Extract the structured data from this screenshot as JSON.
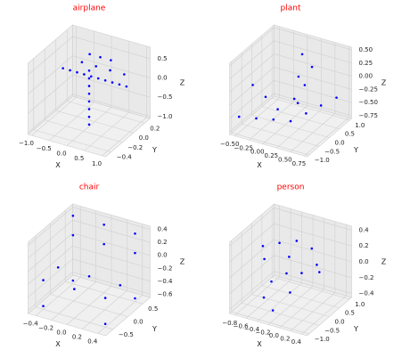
{
  "chart_data": [
    {
      "type": "scatter3d",
      "title": "airplane",
      "title_color": "#ff0000",
      "xlabel": "X",
      "ylabel": "Y",
      "zlabel": "Z",
      "color": "#0000ff",
      "xlim": [
        -1.1,
        1.1
      ],
      "ylim": [
        -0.5,
        0.3
      ],
      "zlim": [
        -1.05,
        0.8
      ],
      "xticks": [
        {
          "value": -1.0,
          "label": "−1.0"
        },
        {
          "value": -0.5,
          "label": "−0.5"
        },
        {
          "value": 0.0,
          "label": "0.0"
        },
        0.5,
        {
          "value": 1.0,
          "label": "1.0"
        }
      ],
      "yticks": [
        {
          "value": -0.4,
          "label": "−0.4"
        },
        {
          "value": -0.2,
          "label": "−0.2"
        },
        {
          "value": 0.0,
          "label": "0.0"
        },
        0.2
      ],
      "zticks": [
        {
          "value": -1.0,
          "label": "−1.0"
        },
        {
          "value": -0.5,
          "label": "−0.5"
        },
        {
          "value": 0.0,
          "label": "0.0"
        },
        0.5
      ],
      "x": [
        -0.9,
        -0.7,
        -0.5,
        -0.3,
        -0.1,
        0.1,
        0.3,
        0.5,
        0.7,
        0.9,
        -0.6,
        -0.2,
        0.2,
        0.6,
        0,
        0,
        0,
        0,
        0,
        0,
        0,
        0,
        -0.3,
        0,
        0.3
      ],
      "y": [
        0,
        0,
        0,
        0,
        0,
        0,
        0,
        0,
        0,
        0,
        0.15,
        0.15,
        0.15,
        0.15,
        -0.1,
        -0.1,
        -0.1,
        -0.1,
        -0.1,
        -0.1,
        -0.1,
        -0.1,
        0.1,
        0.1,
        0.1
      ],
      "z": [
        0.1,
        0.1,
        0.1,
        0.1,
        0.1,
        0.1,
        0.1,
        0.1,
        0.1,
        0.1,
        0.15,
        0.15,
        0.15,
        0.15,
        -1.0,
        -0.8,
        -0.6,
        -0.4,
        -0.2,
        0,
        0.2,
        0.4,
        0.5,
        0.5,
        0.5
      ]
    },
    {
      "type": "scatter3d",
      "title": "plant",
      "title_color": "#ff0000",
      "xlabel": "X",
      "ylabel": "Y",
      "zlabel": "Z",
      "color": "#0000ff",
      "xlim": [
        -0.6,
        0.8
      ],
      "ylim": [
        -1.1,
        1.1
      ],
      "zlim": [
        -0.8,
        0.55
      ],
      "xticks": [
        {
          "value": -0.5,
          "label": "−0.50"
        },
        {
          "value": -0.25,
          "label": "−0.25"
        },
        {
          "value": 0.0,
          "label": "0.00"
        },
        0.25,
        {
          "value": 0.5,
          "label": "0.50"
        },
        0.75
      ],
      "yticks": [
        {
          "value": -1.0,
          "label": "−1.0"
        },
        {
          "value": -0.5,
          "label": "−0.5"
        },
        {
          "value": 0.0,
          "label": "0.0"
        },
        0.5,
        {
          "value": 1.0,
          "label": "1.0"
        }
      ],
      "zticks": [
        {
          "value": -0.75,
          "label": "−0.75"
        },
        {
          "value": -0.5,
          "label": "−0.50"
        },
        {
          "value": -0.25,
          "label": "−0.25"
        },
        {
          "value": 0.0,
          "label": "0.00"
        },
        0.25,
        {
          "value": 0.5,
          "label": "0.50"
        }
      ],
      "x": [
        0.1,
        -0.07,
        -0.23,
        -0.4,
        0.13,
        0.17,
        0.2,
        0.22,
        0.33,
        0.45,
        0.27,
        0.43,
        0.6,
        -0.1,
        -0.3,
        -0.5
      ],
      "y": [
        0,
        -0.17,
        -0.33,
        -0.5,
        0.1,
        0.2,
        0.3,
        0.03,
        0.07,
        0.1,
        0.3,
        0.6,
        0.9,
        -0.3,
        -0.6,
        -0.9
      ],
      "z": [
        -0.7,
        -0.47,
        -0.23,
        0,
        -0.3,
        0.1,
        0.5,
        -0.33,
        0.03,
        0.4,
        -0.6,
        -0.5,
        -0.4,
        -0.63,
        -0.57,
        -0.5
      ]
    },
    {
      "type": "scatter3d",
      "title": "chair",
      "title_color": "#ff0000",
      "xlabel": "X",
      "ylabel": "Y",
      "zlabel": "Z",
      "color": "#0000ff",
      "xlim": [
        -0.5,
        0.5
      ],
      "ylim": [
        -0.75,
        0.75
      ],
      "zlim": [
        -0.65,
        0.45
      ],
      "xticks": [
        {
          "value": -0.4,
          "label": "−0.4"
        },
        {
          "value": -0.2,
          "label": "−0.2"
        },
        {
          "value": 0.0,
          "label": "0.0"
        },
        0.2,
        0.4
      ],
      "yticks": [
        {
          "value": -0.5,
          "label": "−0.5"
        },
        {
          "value": 0.0,
          "label": "0.0"
        },
        0.5
      ],
      "zticks": [
        {
          "value": -0.6,
          "label": "−0.6"
        },
        {
          "value": -0.4,
          "label": "−0.4"
        },
        {
          "value": -0.2,
          "label": "−0.2"
        },
        {
          "value": 0.0,
          "label": "0.0"
        },
        0.2,
        0.4
      ],
      "x": [
        -0.4,
        0,
        0.4,
        -0.4,
        0,
        0.4,
        -0.4,
        0,
        0.4,
        -0.4,
        0,
        0.4,
        -0.4,
        0.4,
        -0.4,
        0.4
      ],
      "y": [
        0.5,
        0.5,
        0.5,
        0.5,
        0.5,
        0.5,
        -0.5,
        -0.5,
        -0.5,
        0,
        0,
        0,
        -0.5,
        -0.5,
        0.5,
        0.5
      ],
      "z": [
        0.4,
        0.4,
        0.4,
        0.1,
        0.1,
        0.1,
        -0.2,
        -0.2,
        -0.2,
        -0.2,
        -0.2,
        -0.2,
        -0.6,
        -0.6,
        -0.6,
        -0.6
      ]
    },
    {
      "type": "scatter3d",
      "title": "person",
      "title_color": "#ff0000",
      "xlabel": "X",
      "ylabel": "Y",
      "zlabel": "Z",
      "color": "#0000ff",
      "xlim": [
        -0.9,
        0.5
      ],
      "ylim": [
        -1.1,
        1.1
      ],
      "zlim": [
        -0.45,
        0.45
      ],
      "xticks": [
        {
          "value": -0.8,
          "label": "−0.8"
        },
        {
          "value": -0.6,
          "label": "−0.6"
        },
        {
          "value": -0.4,
          "label": "−0.4"
        },
        {
          "value": -0.2,
          "label": "−0.2"
        },
        {
          "value": 0.0,
          "label": "0.0"
        },
        0.2,
        0.4
      ],
      "yticks": [
        {
          "value": -1.0,
          "label": "−1.0"
        },
        {
          "value": -0.5,
          "label": "−0.5"
        },
        {
          "value": 0.0,
          "label": "0.0"
        },
        0.5,
        {
          "value": 1.0,
          "label": "1.0"
        }
      ],
      "zticks": [
        {
          "value": -0.4,
          "label": "−0.4"
        },
        {
          "value": -0.2,
          "label": "−0.2"
        },
        {
          "value": 0.0,
          "label": "0.0"
        },
        0.2,
        0.4
      ],
      "x": [
        -0.4,
        -0.2,
        0,
        0.2,
        -0.6,
        -0.4,
        -0.2,
        0,
        -0.3,
        -0.5,
        -0.3,
        0.1,
        -0.1,
        -0.7
      ],
      "y": [
        0,
        0.3,
        0.5,
        0.2,
        -0.2,
        -0.4,
        -0.2,
        0,
        0.2,
        -0.5,
        -0.6,
        0.6,
        -0.3,
        0
      ],
      "z": [
        0.3,
        0.3,
        0.2,
        0.1,
        0.1,
        -0.1,
        0,
        0,
        0.1,
        -0.3,
        -0.4,
        -0.1,
        -0.2,
        0.2
      ]
    }
  ]
}
